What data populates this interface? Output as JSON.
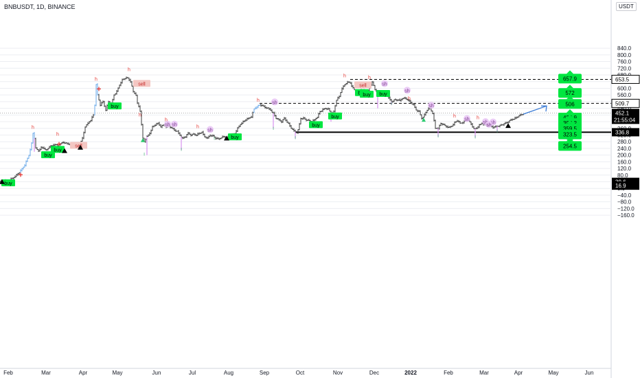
{
  "header": {
    "title": "BNBUSDT, 1D, BINANCE",
    "currency": "USDT"
  },
  "colors": {
    "green": "#00e640",
    "red": "#e53935",
    "violet": "#d891f0",
    "black": "#000000",
    "blue": "#3a7bd5",
    "grid": "#eceef2"
  },
  "chart_data": {
    "type": "candlestick",
    "title": "BNBUSDT, 1D, BINANCE",
    "ylim": [
      -170,
      880
    ],
    "y_ticks": [
      "840.0",
      "800.0",
      "760.0",
      "720.0",
      "680.0",
      "640.0",
      "600.0",
      "560.0",
      "520.0",
      "480.0",
      "440.0",
      "400.0",
      "360.0",
      "320.0",
      "280.0",
      "240.0",
      "200.0",
      "160.0",
      "120.0",
      "80.0",
      "40.0",
      "0.0",
      "−40.0",
      "−80.0",
      "−120.0",
      "−160.0"
    ],
    "x_ticks": [
      "Feb",
      "Mar",
      "Apr",
      "May",
      "Jun",
      "Jul",
      "Aug",
      "Sep",
      "Oct",
      "Nov",
      "Dec",
      "2022",
      "Feb",
      "Mar",
      "Apr",
      "May",
      "Jun"
    ],
    "price_path": [
      [
        0,
        45
      ],
      [
        6,
        43
      ],
      [
        12,
        48
      ],
      [
        18,
        60
      ],
      [
        24,
        80
      ],
      [
        30,
        105
      ],
      [
        36,
        140
      ],
      [
        42,
        200
      ],
      [
        46,
        270
      ],
      [
        48,
        330
      ],
      [
        50,
        300
      ],
      [
        52,
        240
      ],
      [
        56,
        225
      ],
      [
        60,
        245
      ],
      [
        64,
        240
      ],
      [
        68,
        230
      ],
      [
        72,
        250
      ],
      [
        76,
        255
      ],
      [
        80,
        265
      ],
      [
        84,
        255
      ],
      [
        88,
        270
      ],
      [
        92,
        275
      ],
      [
        96,
        270
      ],
      [
        100,
        265
      ],
      [
        104,
        260
      ],
      [
        108,
        255
      ],
      [
        112,
        250
      ],
      [
        116,
        260
      ],
      [
        120,
        300
      ],
      [
        124,
        370
      ],
      [
        128,
        390
      ],
      [
        132,
        410
      ],
      [
        136,
        440
      ],
      [
        138,
        500
      ],
      [
        140,
        620
      ],
      [
        142,
        560
      ],
      [
        146,
        500
      ],
      [
        150,
        520
      ],
      [
        154,
        470
      ],
      [
        158,
        520
      ],
      [
        162,
        500
      ],
      [
        166,
        560
      ],
      [
        170,
        580
      ],
      [
        174,
        620
      ],
      [
        178,
        650
      ],
      [
        182,
        660
      ],
      [
        186,
        660
      ],
      [
        190,
        640
      ],
      [
        194,
        580
      ],
      [
        198,
        560
      ],
      [
        200,
        510
      ],
      [
        202,
        490
      ],
      [
        205,
        450
      ],
      [
        206,
        380
      ],
      [
        208,
        300
      ],
      [
        210,
        280
      ],
      [
        214,
        310
      ],
      [
        218,
        330
      ],
      [
        222,
        370
      ],
      [
        226,
        380
      ],
      [
        230,
        390
      ],
      [
        234,
        370
      ],
      [
        238,
        380
      ],
      [
        242,
        370
      ],
      [
        246,
        375
      ],
      [
        250,
        360
      ],
      [
        254,
        350
      ],
      [
        258,
        340
      ],
      [
        262,
        320
      ],
      [
        266,
        300
      ],
      [
        270,
        310
      ],
      [
        274,
        330
      ],
      [
        278,
        320
      ],
      [
        282,
        325
      ],
      [
        286,
        320
      ],
      [
        290,
        330
      ],
      [
        294,
        335
      ],
      [
        298,
        310
      ],
      [
        302,
        300
      ],
      [
        306,
        320
      ],
      [
        310,
        315
      ],
      [
        314,
        300
      ],
      [
        318,
        295
      ],
      [
        322,
        305
      ],
      [
        326,
        310
      ],
      [
        330,
        300
      ],
      [
        334,
        315
      ],
      [
        338,
        320
      ],
      [
        342,
        330
      ],
      [
        346,
        360
      ],
      [
        350,
        385
      ],
      [
        354,
        400
      ],
      [
        358,
        410
      ],
      [
        362,
        420
      ],
      [
        366,
        430
      ],
      [
        370,
        475
      ],
      [
        374,
        490
      ],
      [
        378,
        500
      ],
      [
        382,
        495
      ],
      [
        386,
        485
      ],
      [
        390,
        480
      ],
      [
        394,
        470
      ],
      [
        398,
        450
      ],
      [
        402,
        420
      ],
      [
        406,
        410
      ],
      [
        410,
        400
      ],
      [
        414,
        420
      ],
      [
        418,
        400
      ],
      [
        422,
        375
      ],
      [
        426,
        350
      ],
      [
        430,
        340
      ],
      [
        432,
        335
      ],
      [
        434,
        350
      ],
      [
        438,
        420
      ],
      [
        442,
        420
      ],
      [
        446,
        410
      ],
      [
        450,
        405
      ],
      [
        454,
        400
      ],
      [
        458,
        410
      ],
      [
        462,
        430
      ],
      [
        466,
        460
      ],
      [
        470,
        470
      ],
      [
        474,
        480
      ],
      [
        478,
        475
      ],
      [
        482,
        450
      ],
      [
        486,
        460
      ],
      [
        490,
        530
      ],
      [
        494,
        550
      ],
      [
        498,
        600
      ],
      [
        502,
        620
      ],
      [
        506,
        640
      ],
      [
        510,
        630
      ],
      [
        514,
        600
      ],
      [
        518,
        580
      ],
      [
        522,
        560
      ],
      [
        526,
        590
      ],
      [
        530,
        590
      ],
      [
        534,
        570
      ],
      [
        538,
        600
      ],
      [
        542,
        640
      ],
      [
        546,
        590
      ],
      [
        550,
        580
      ],
      [
        554,
        570
      ],
      [
        558,
        560
      ],
      [
        562,
        565
      ],
      [
        566,
        540
      ],
      [
        570,
        520
      ],
      [
        574,
        530
      ],
      [
        578,
        530
      ],
      [
        582,
        525
      ],
      [
        586,
        540
      ],
      [
        590,
        540
      ],
      [
        594,
        530
      ],
      [
        598,
        515
      ],
      [
        602,
        500
      ],
      [
        606,
        470
      ],
      [
        610,
        460
      ],
      [
        614,
        420
      ],
      [
        618,
        440
      ],
      [
        622,
        470
      ],
      [
        626,
        480
      ],
      [
        630,
        450
      ],
      [
        634,
        360
      ],
      [
        638,
        360
      ],
      [
        642,
        390
      ],
      [
        646,
        380
      ],
      [
        650,
        370
      ],
      [
        654,
        365
      ],
      [
        658,
        375
      ],
      [
        662,
        395
      ],
      [
        666,
        405
      ],
      [
        670,
        390
      ],
      [
        674,
        395
      ],
      [
        678,
        405
      ],
      [
        682,
        410
      ],
      [
        686,
        385
      ],
      [
        690,
        355
      ],
      [
        694,
        360
      ],
      [
        698,
        380
      ],
      [
        702,
        390
      ],
      [
        706,
        380
      ],
      [
        710,
        375
      ],
      [
        714,
        380
      ],
      [
        718,
        365
      ],
      [
        722,
        370
      ],
      [
        726,
        375
      ],
      [
        730,
        380
      ],
      [
        734,
        385
      ],
      [
        738,
        395
      ],
      [
        742,
        405
      ],
      [
        746,
        415
      ],
      [
        750,
        420
      ],
      [
        754,
        430
      ],
      [
        758,
        440
      ],
      [
        762,
        445
      ]
    ],
    "spikes": [
      {
        "x": 50,
        "low": 220
      },
      {
        "x": 214,
        "low": 200
      },
      {
        "x": 264,
        "low": 230
      },
      {
        "x": 398,
        "low": 360
      },
      {
        "x": 430,
        "low": 300
      },
      {
        "x": 482,
        "low": 400
      },
      {
        "x": 550,
        "low": 480
      },
      {
        "x": 570,
        "low": 500
      },
      {
        "x": 638,
        "low": 310
      },
      {
        "x": 692,
        "low": 305
      },
      {
        "x": 724,
        "low": 340
      }
    ],
    "blue_zones": [
      [
        30,
        50
      ],
      [
        138,
        142
      ],
      [
        370,
        378
      ]
    ],
    "levels_dashed": [
      {
        "value": 653.5,
        "label": "653.5",
        "x_start": 510
      },
      {
        "value": 509.7,
        "label": "509.7",
        "x_start": 378
      }
    ],
    "level_solid": {
      "value": 336.8,
      "label": "336.8",
      "x_start": 430
    },
    "current_price": {
      "value": 452.1,
      "label": "452.1",
      "countdown": "21:55:04"
    },
    "axis_badges": [
      {
        "value": 39.6,
        "label": "39.6"
      },
      {
        "value": 16.9,
        "label": "16.9"
      }
    ],
    "target_badges": [
      {
        "value": 657.9,
        "label": "657.9",
        "dir": "up"
      },
      {
        "value": 572,
        "label": "572",
        "dir": "up"
      },
      {
        "value": 506,
        "label": "506",
        "dir": "up"
      },
      {
        "value": 424.9,
        "label": "424.9",
        "dir": "up"
      },
      {
        "value": 392.2,
        "label": "392.2",
        "dir": "up"
      },
      {
        "value": 359.5,
        "label": "359.5",
        "dir": "up"
      },
      {
        "value": 323.5,
        "label": "323.5",
        "dir": "down"
      },
      {
        "value": 254.5,
        "label": "254.5",
        "dir": "up"
      }
    ],
    "buy_labels": [
      {
        "x": 2,
        "value": 30,
        "text": "buy"
      },
      {
        "x": 60,
        "value": 198,
        "text": "buy"
      },
      {
        "x": 74,
        "value": 230,
        "text": "buy"
      },
      {
        "x": 157,
        "value": 490,
        "text": "buy"
      },
      {
        "x": 332,
        "value": 305,
        "text": "buy"
      },
      {
        "x": 450,
        "value": 378,
        "text": "buy"
      },
      {
        "x": 478,
        "value": 430,
        "text": "buy"
      },
      {
        "x": 517,
        "value": 570,
        "text": "buy"
      },
      {
        "x": 524,
        "value": 560,
        "text": "buy"
      },
      {
        "x": 548,
        "value": 565,
        "text": "buy"
      }
    ],
    "sell_labels": [
      {
        "x": 102,
        "value": 254,
        "text": "sell"
      },
      {
        "x": 194,
        "value": 625,
        "text": "sell"
      },
      {
        "x": 516,
        "value": 616,
        "text": "sell"
      }
    ],
    "sh_labels": [
      {
        "x": 240,
        "value": 377,
        "text": "sh"
      },
      {
        "x": 250,
        "value": 377,
        "text": "sh"
      },
      {
        "x": 302,
        "value": 345,
        "text": "sh"
      },
      {
        "x": 396,
        "value": 510,
        "text": "sh"
      },
      {
        "x": 556,
        "value": 620,
        "text": "sh"
      },
      {
        "x": 589,
        "value": 580,
        "text": "sh"
      },
      {
        "x": 624,
        "value": 490,
        "text": "sh"
      },
      {
        "x": 676,
        "value": 410,
        "text": "sh"
      },
      {
        "x": 703,
        "value": 392,
        "text": "sh"
      },
      {
        "x": 714,
        "value": 390,
        "text": "sh"
      },
      {
        "x": 708,
        "value": 376,
        "text": "sh"
      }
    ],
    "h_labels": [
      {
        "x": 48,
        "value": 357
      },
      {
        "x": 84,
        "value": 315
      },
      {
        "x": 140,
        "value": 644
      },
      {
        "x": 188,
        "value": 702
      },
      {
        "x": 204,
        "value": 432
      },
      {
        "x": 242,
        "value": 402
      },
      {
        "x": 288,
        "value": 362
      },
      {
        "x": 376,
        "value": 520
      },
      {
        "x": 502,
        "value": 665
      },
      {
        "x": 538,
        "value": 655
      },
      {
        "x": 596,
        "value": 530
      },
      {
        "x": 662,
        "value": 425
      },
      {
        "x": 696,
        "value": 415
      }
    ],
    "l_labels": [
      {
        "x": 210,
        "value": 196
      },
      {
        "x": 264,
        "value": 226
      },
      {
        "x": 312,
        "value": 292
      },
      {
        "x": 398,
        "value": 350
      },
      {
        "x": 430,
        "value": 296
      },
      {
        "x": 570,
        "value": 498
      },
      {
        "x": 638,
        "value": 306
      },
      {
        "x": 692,
        "value": 300
      },
      {
        "x": 724,
        "value": 335
      }
    ],
    "cross_marks": [
      {
        "x": 30,
        "value": 82
      },
      {
        "x": 86,
        "value": 266
      },
      {
        "x": 144,
        "value": 596
      }
    ],
    "triangles": [
      {
        "x": 3,
        "value": 39
      },
      {
        "x": 94,
        "value": 225
      },
      {
        "x": 117,
        "value": 245
      },
      {
        "x": 330,
        "value": 300
      },
      {
        "x": 740,
        "value": 375
      }
    ],
    "green_triangles": [
      {
        "x": 208,
        "value": 290
      },
      {
        "x": 617,
        "value": 412
      }
    ],
    "projection_arrow": {
      "from": [
        762,
        445
      ],
      "to": [
        796,
        494
      ]
    }
  }
}
